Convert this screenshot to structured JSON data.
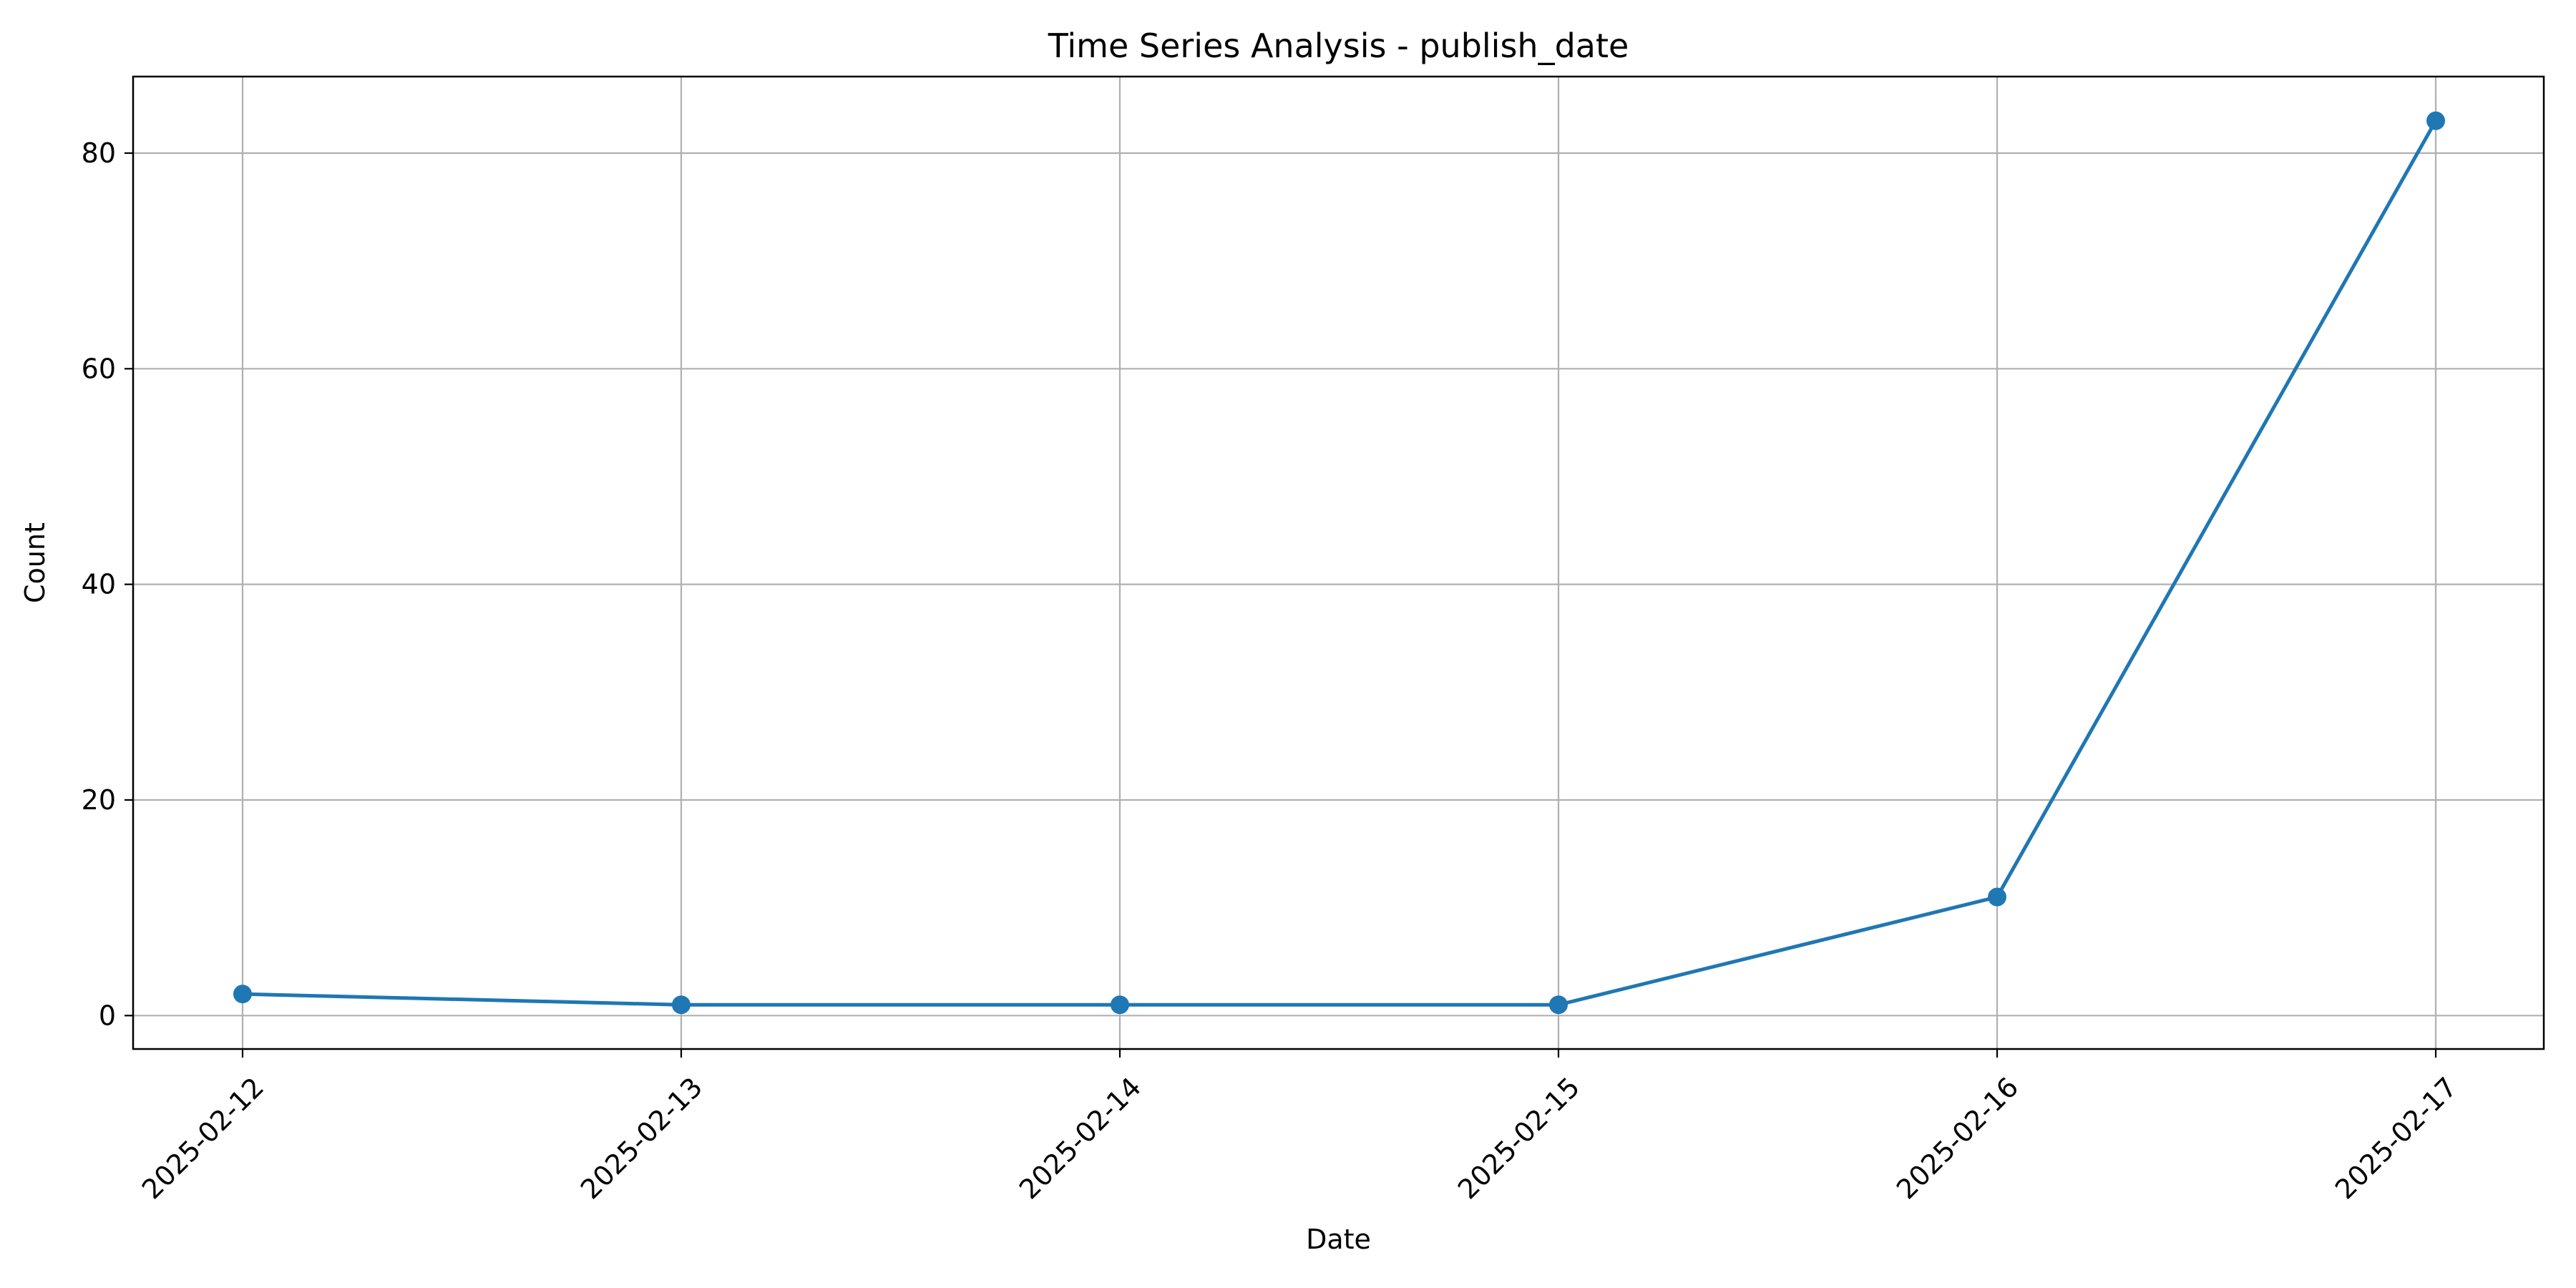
{
  "chart_data": {
    "type": "line",
    "title": "Time Series Analysis - publish_date",
    "xlabel": "Date",
    "ylabel": "Count",
    "x": [
      "2025-02-12",
      "2025-02-13",
      "2025-02-14",
      "2025-02-15",
      "2025-02-16",
      "2025-02-17"
    ],
    "series": [
      {
        "values": [
          2,
          1,
          1,
          1,
          11,
          83
        ],
        "color": "#1f77b4",
        "marker": "circle"
      }
    ],
    "ylim": [
      -3.1,
      87.1
    ],
    "yticks": [
      0,
      20,
      40,
      60,
      80
    ],
    "grid": true,
    "legend": "none",
    "xtick_rotation_deg": 45
  }
}
